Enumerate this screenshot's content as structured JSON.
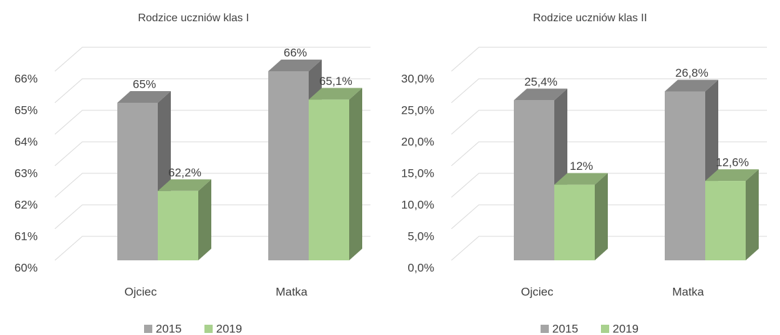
{
  "chart_data": [
    {
      "type": "bar3d",
      "title": "Rodzice uczniów klas I",
      "categories": [
        "Ojciec",
        "Matka"
      ],
      "series": [
        {
          "name": "2015",
          "color": "#a5a5a5",
          "values": [
            65,
            66
          ],
          "value_labels": [
            "65%",
            "66%"
          ]
        },
        {
          "name": "2019",
          "color": "#a9d18e",
          "values": [
            62.2,
            65.1
          ],
          "value_labels": [
            "62,2%",
            "65,1%"
          ]
        }
      ],
      "ylim": [
        60,
        66
      ],
      "yticks": [
        {
          "value": 60,
          "label": "60%"
        },
        {
          "value": 61,
          "label": "61%"
        },
        {
          "value": 62,
          "label": "62%"
        },
        {
          "value": 63,
          "label": "63%"
        },
        {
          "value": 64,
          "label": "64%"
        },
        {
          "value": 65,
          "label": "65%"
        },
        {
          "value": 66,
          "label": "66%"
        }
      ],
      "grid": true,
      "legend": "bottom"
    },
    {
      "type": "bar3d",
      "title": "Rodzice uczniów klas II",
      "categories": [
        "Ojciec",
        "Matka"
      ],
      "series": [
        {
          "name": "2015",
          "color": "#a5a5a5",
          "values": [
            25.4,
            26.8
          ],
          "value_labels": [
            "25,4%",
            "26,8%"
          ]
        },
        {
          "name": "2019",
          "color": "#a9d18e",
          "values": [
            12,
            12.6
          ],
          "value_labels": [
            "12%",
            "12,6%"
          ]
        }
      ],
      "ylim": [
        0,
        30
      ],
      "yticks": [
        {
          "value": 0,
          "label": "0,0%"
        },
        {
          "value": 5,
          "label": "5,0%"
        },
        {
          "value": 10,
          "label": "10,0%"
        },
        {
          "value": 15,
          "label": "15,0%"
        },
        {
          "value": 20,
          "label": "20,0%"
        },
        {
          "value": 25,
          "label": "25,0%"
        },
        {
          "value": 30,
          "label": "30,0%"
        }
      ],
      "grid": true,
      "legend": "bottom"
    }
  ]
}
